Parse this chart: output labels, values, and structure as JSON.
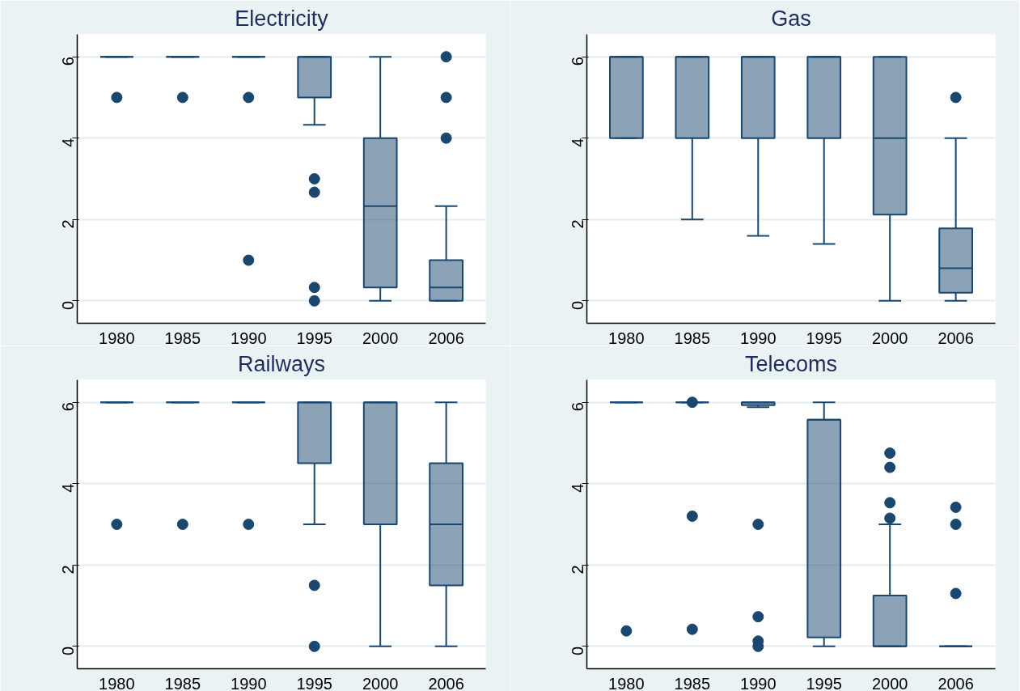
{
  "chart_data": [
    {
      "type": "box",
      "title": "Electricity",
      "categories": [
        "1980",
        "1985",
        "1990",
        "1995",
        "2000",
        "2006"
      ],
      "ylim": [
        -0.55,
        6.55
      ],
      "yticks": [
        0,
        2,
        4,
        6
      ],
      "grid": "y",
      "series": [
        {
          "color": "#1a476f",
          "boxes": [
            {
              "low": 6,
              "q1": 6,
              "median": 6,
              "q3": 6,
              "high": 6,
              "outliers": [
                5
              ]
            },
            {
              "low": 6,
              "q1": 6,
              "median": 6,
              "q3": 6,
              "high": 6,
              "outliers": [
                5
              ]
            },
            {
              "low": 6,
              "q1": 6,
              "median": 6,
              "q3": 6,
              "high": 6,
              "outliers": [
                5,
                1
              ]
            },
            {
              "low": 4.33,
              "q1": 5,
              "median": 6,
              "q3": 6,
              "high": 6,
              "outliers": [
                3,
                2.67,
                0.33,
                0
              ]
            },
            {
              "low": 0,
              "q1": 0.33,
              "median": 2.33,
              "q3": 4,
              "high": 6
            },
            {
              "low": 0,
              "q1": 0,
              "median": 0.33,
              "q3": 1,
              "high": 2.33,
              "outliers": [
                6,
                5,
                4
              ]
            }
          ]
        }
      ]
    },
    {
      "type": "box",
      "title": "Gas",
      "categories": [
        "1980",
        "1985",
        "1990",
        "1995",
        "2000",
        "2006"
      ],
      "ylim": [
        -0.55,
        6.55
      ],
      "yticks": [
        0,
        2,
        4,
        6
      ],
      "grid": "y",
      "series": [
        {
          "color": "#1a476f",
          "boxes": [
            {
              "low": 4,
              "q1": 4,
              "median": 6,
              "q3": 6,
              "high": 6
            },
            {
              "low": 2,
              "q1": 4,
              "median": 6,
              "q3": 6,
              "high": 6
            },
            {
              "low": 1.6,
              "q1": 4,
              "median": 6,
              "q3": 6,
              "high": 6
            },
            {
              "low": 1.4,
              "q1": 4,
              "median": 6,
              "q3": 6,
              "high": 6
            },
            {
              "low": 0,
              "q1": 2.12,
              "median": 4,
              "q3": 6,
              "high": 6
            },
            {
              "low": 0,
              "q1": 0.2,
              "median": 0.8,
              "q3": 1.78,
              "high": 4,
              "outliers": [
                5
              ]
            }
          ]
        }
      ]
    },
    {
      "type": "box",
      "title": "Railways",
      "categories": [
        "1980",
        "1985",
        "1990",
        "1995",
        "2000",
        "2006"
      ],
      "ylim": [
        -0.55,
        6.55
      ],
      "yticks": [
        0,
        2,
        4,
        6
      ],
      "grid": "y",
      "series": [
        {
          "color": "#1a476f",
          "boxes": [
            {
              "low": 6,
              "q1": 6,
              "median": 6,
              "q3": 6,
              "high": 6,
              "outliers": [
                3
              ]
            },
            {
              "low": 6,
              "q1": 6,
              "median": 6,
              "q3": 6,
              "high": 6,
              "outliers": [
                3
              ]
            },
            {
              "low": 6,
              "q1": 6,
              "median": 6,
              "q3": 6,
              "high": 6,
              "outliers": [
                3
              ]
            },
            {
              "low": 3,
              "q1": 4.5,
              "median": 6,
              "q3": 6,
              "high": 6,
              "outliers": [
                1.5,
                0
              ]
            },
            {
              "low": 0,
              "q1": 3,
              "median": 6,
              "q3": 6,
              "high": 6
            },
            {
              "low": 0,
              "q1": 1.5,
              "median": 3,
              "q3": 4.5,
              "high": 6
            }
          ]
        }
      ]
    },
    {
      "type": "box",
      "title": "Telecoms",
      "categories": [
        "1980",
        "1985",
        "1990",
        "1995",
        "2000",
        "2006"
      ],
      "ylim": [
        -0.55,
        6.55
      ],
      "yticks": [
        0,
        2,
        4,
        6
      ],
      "grid": "y",
      "series": [
        {
          "color": "#1a476f",
          "boxes": [
            {
              "low": 6,
              "q1": 6,
              "median": 6,
              "q3": 6,
              "high": 6,
              "outliers": [
                0.38
              ]
            },
            {
              "low": 6,
              "q1": 6,
              "median": 6,
              "q3": 6,
              "high": 6,
              "outliers": [
                6,
                3.2,
                0.42
              ]
            },
            {
              "low": 5.88,
              "q1": 5.93,
              "median": 6,
              "q3": 6,
              "high": 6,
              "outliers": [
                3,
                0.73,
                0.13,
                0
              ]
            },
            {
              "low": 0,
              "q1": 0.22,
              "median": 5.57,
              "q3": 5.57,
              "high": 6
            },
            {
              "low": 0,
              "q1": 0,
              "median": 0,
              "q3": 1.25,
              "high": 3,
              "outliers": [
                4.75,
                4.4,
                3.53,
                3.15
              ]
            },
            {
              "low": 0,
              "q1": 0,
              "median": 0,
              "q3": 0,
              "high": 0,
              "outliers": [
                3.42,
                3,
                1.3
              ]
            }
          ]
        }
      ]
    }
  ]
}
